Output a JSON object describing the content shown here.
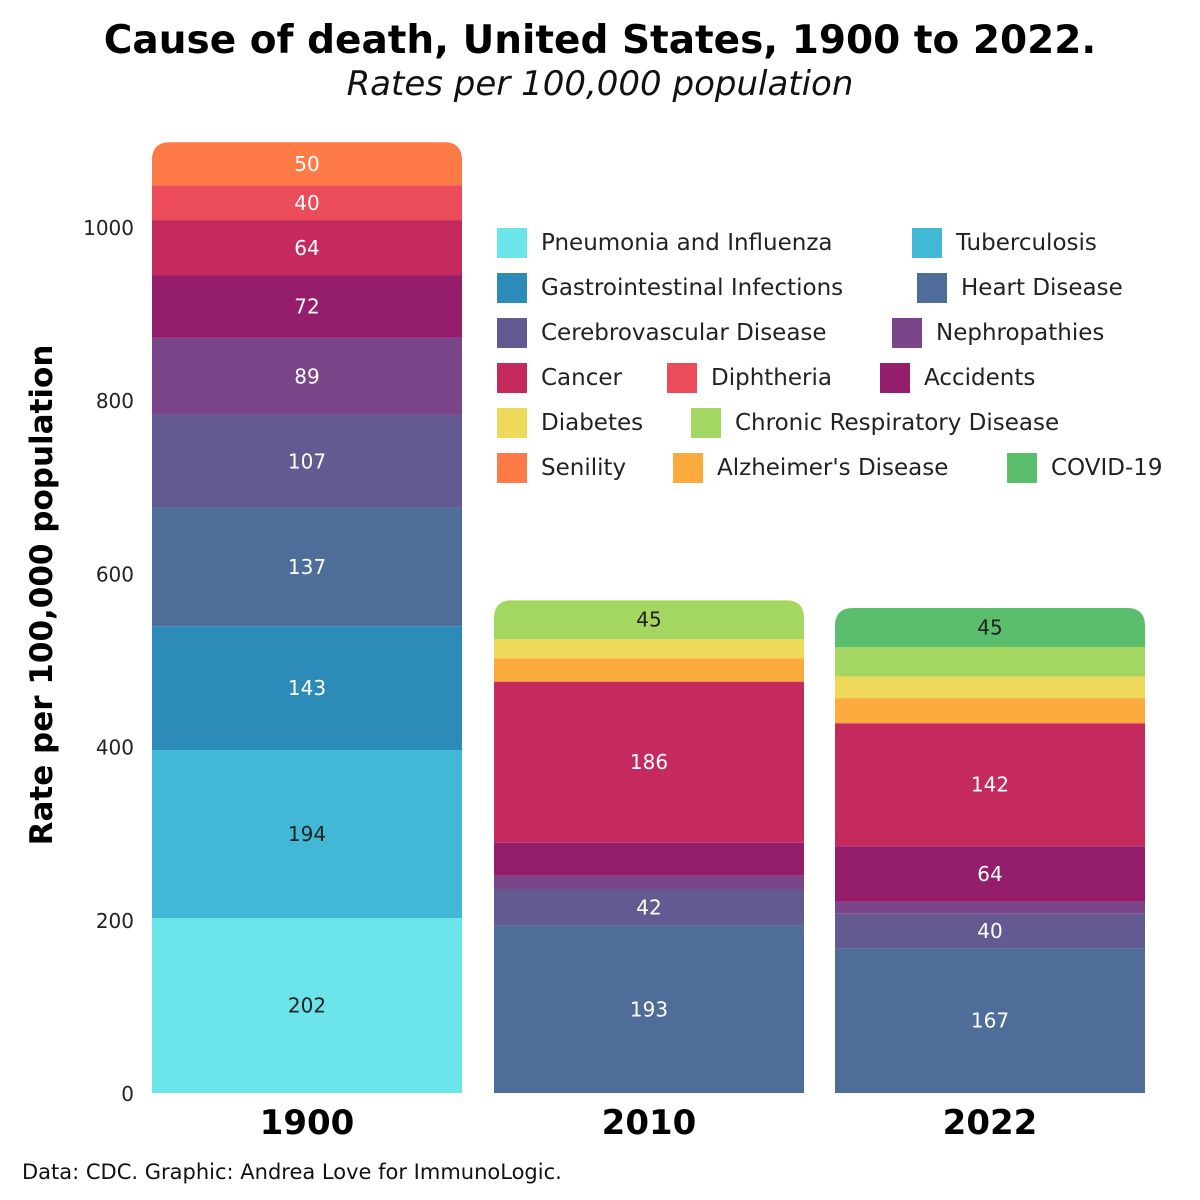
{
  "title": "Cause of death, United States, 1900 to 2022.",
  "subtitle": "Rates per 100,000 population",
  "source": "Data: CDC. Graphic: Andrea Love for ImmunoLogic.",
  "chart_data": {
    "type": "bar",
    "stacked": true,
    "ylabel": "Rate per 100,000 population",
    "xlabel": "",
    "ylim": [
      0,
      1100
    ],
    "yticks": [
      0,
      200,
      400,
      600,
      800,
      1000
    ],
    "categories": [
      "1900",
      "2010",
      "2022"
    ],
    "legend_placement": "top-right",
    "grid": false,
    "series": [
      {
        "name": "Pneumonia and Influenza",
        "color": "#6ce5ea",
        "values": [
          202,
          0,
          0
        ],
        "labels": [
          "202",
          "",
          ""
        ],
        "label_color": "#222222"
      },
      {
        "name": "Tuberculosis",
        "color": "#41b8d6",
        "values": [
          194,
          0,
          0
        ],
        "labels": [
          "194",
          "",
          ""
        ],
        "label_color": "#222222"
      },
      {
        "name": "Gastrointestinal Infections",
        "color": "#2d8bba",
        "values": [
          143,
          0,
          0
        ],
        "labels": [
          "143",
          "",
          ""
        ],
        "label_color": "#ffffff"
      },
      {
        "name": "Heart Disease",
        "color": "#4e6e99",
        "values": [
          137,
          193,
          167
        ],
        "labels": [
          "137",
          "193",
          "167"
        ],
        "label_color": "#ffffff"
      },
      {
        "name": "Cerebrovascular Disease",
        "color": "#635a92",
        "values": [
          107,
          42,
          40
        ],
        "labels": [
          "107",
          "42",
          "40"
        ],
        "label_color": "#ffffff"
      },
      {
        "name": "Nephropathies",
        "color": "#7a4689",
        "values": [
          89,
          16,
          14
        ],
        "labels": [
          "89",
          "",
          ""
        ],
        "label_color": "#ffffff"
      },
      {
        "name": "Accidents",
        "color": "#941e6b",
        "values": [
          72,
          38,
          64
        ],
        "labels": [
          "72",
          "",
          "64"
        ],
        "label_color": "#ffffff"
      },
      {
        "name": "Cancer",
        "color": "#c42a5d",
        "values": [
          64,
          186,
          142
        ],
        "labels": [
          "64",
          "186",
          "142"
        ],
        "label_color": "#ffffff"
      },
      {
        "name": "Diphtheria",
        "color": "#ec4c5a",
        "values": [
          40,
          0,
          0
        ],
        "labels": [
          "40",
          "",
          ""
        ],
        "label_color": "#ffffff"
      },
      {
        "name": "Alzheimer's Disease",
        "color": "#fbab3d",
        "values": [
          0,
          27,
          29
        ],
        "labels": [
          "",
          "",
          ""
        ],
        "label_color": "#222222"
      },
      {
        "name": "Diabetes",
        "color": "#efd95b",
        "values": [
          0,
          22,
          25
        ],
        "labels": [
          "",
          "",
          ""
        ],
        "label_color": "#222222"
      },
      {
        "name": "Chronic Respiratory Disease",
        "color": "#a4d761",
        "values": [
          0,
          45,
          34
        ],
        "labels": [
          "",
          "45",
          ""
        ],
        "label_color": "#222222"
      },
      {
        "name": "COVID-19",
        "color": "#5abe6c",
        "values": [
          0,
          0,
          45
        ],
        "labels": [
          "",
          "",
          "45"
        ],
        "label_color": "#222222"
      },
      {
        "name": "Senility",
        "color": "#fe7a47",
        "values": [
          50,
          0,
          0
        ],
        "labels": [
          "50",
          "",
          ""
        ],
        "label_color": "#ffffff"
      }
    ],
    "legend_rows": [
      [
        "Pneumonia and Influenza",
        "Tuberculosis"
      ],
      [
        "Gastrointestinal Infections",
        "Heart Disease"
      ],
      [
        "Cerebrovascular Disease",
        "Nephropathies"
      ],
      [
        "Cancer",
        "Diphtheria",
        "Accidents"
      ],
      [
        "Diabetes",
        "Chronic Respiratory Disease"
      ],
      [
        "Senility",
        "Alzheimer's Disease",
        "COVID-19"
      ]
    ]
  }
}
